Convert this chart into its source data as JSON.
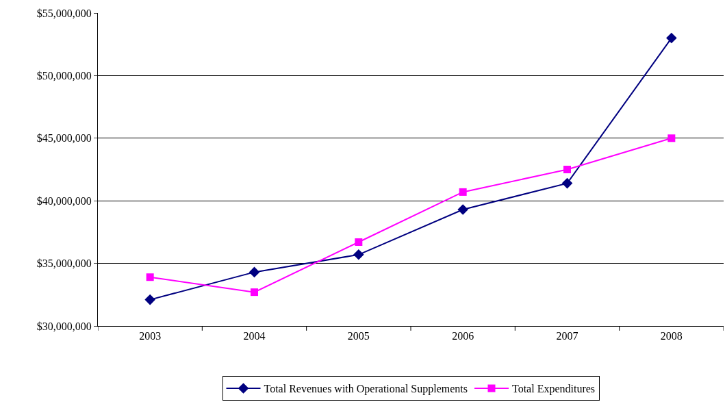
{
  "chart_data": {
    "type": "line",
    "categories": [
      "2003",
      "2004",
      "2005",
      "2006",
      "2007",
      "2008"
    ],
    "series": [
      {
        "name": "Total Revenues with Operational Supplements",
        "color": "#000080",
        "marker": "diamond",
        "values": [
          32100000,
          34300000,
          35700000,
          39300000,
          41400000,
          53000000
        ]
      },
      {
        "name": "Total Expenditures",
        "color": "#ff00ff",
        "marker": "square",
        "values": [
          33900000,
          32700000,
          36700000,
          40700000,
          42500000,
          45000000
        ]
      }
    ],
    "ylim": [
      30000000,
      55000000
    ],
    "yticks": [
      {
        "value": 30000000,
        "label": "$30,000,000"
      },
      {
        "value": 35000000,
        "label": "$35,000,000"
      },
      {
        "value": 40000000,
        "label": "$40,000,000"
      },
      {
        "value": 45000000,
        "label": "$45,000,000"
      },
      {
        "value": 50000000,
        "label": "$50,000,000"
      },
      {
        "value": 55000000,
        "label": "$55,000,000"
      }
    ],
    "grid": "y",
    "legend": "bottom",
    "line_style": "solid"
  }
}
